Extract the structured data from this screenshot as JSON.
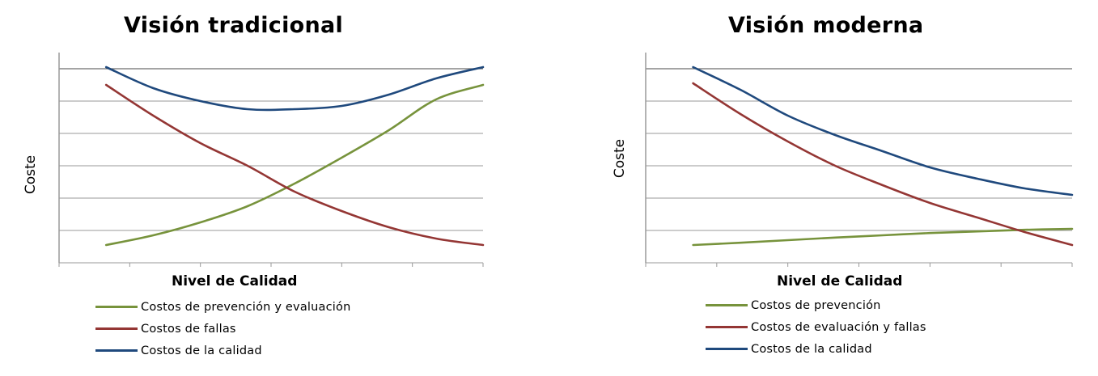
{
  "chart_data": [
    {
      "type": "line",
      "title": "Visión tradicional",
      "xlabel": "Nivel de Calidad",
      "ylabel": "Coste",
      "grid": true,
      "xlim": [
        0,
        9
      ],
      "ylim": [
        0,
        6
      ],
      "x": [
        1,
        2,
        3,
        4,
        5,
        6,
        7,
        8,
        9
      ],
      "series": [
        {
          "name": "Costos de prevención y evaluación",
          "color": "#77933c",
          "values": [
            0.55,
            0.85,
            1.25,
            1.75,
            2.45,
            3.25,
            4.1,
            5.05,
            5.5
          ]
        },
        {
          "name": "Costos de fallas",
          "color": "#943634",
          "values": [
            5.5,
            4.55,
            3.7,
            3.0,
            2.2,
            1.6,
            1.1,
            0.75,
            0.55
          ]
        },
        {
          "name": "Costos de la calidad",
          "color": "#1f497d",
          "values": [
            6.05,
            5.4,
            5.0,
            4.75,
            4.75,
            4.85,
            5.2,
            5.7,
            6.05
          ]
        }
      ],
      "legend_position": "bottom"
    },
    {
      "type": "line",
      "title": "Visión moderna",
      "xlabel": "Nivel de Calidad",
      "ylabel": "Coste",
      "grid": true,
      "xlim": [
        0,
        9
      ],
      "ylim": [
        0,
        6
      ],
      "x": [
        1,
        2,
        3,
        4,
        5,
        6,
        7,
        8,
        9
      ],
      "series": [
        {
          "name": "Costos de prevención",
          "color": "#77933c",
          "values": [
            0.55,
            0.62,
            0.7,
            0.78,
            0.85,
            0.92,
            0.97,
            1.02,
            1.05
          ]
        },
        {
          "name": "Costos de evaluación y fallas",
          "color": "#943634",
          "values": [
            5.55,
            4.6,
            3.75,
            3.0,
            2.4,
            1.85,
            1.4,
            0.95,
            0.55
          ]
        },
        {
          "name": "Costos de la calidad",
          "color": "#1f497d",
          "values": [
            6.05,
            5.35,
            4.55,
            3.95,
            3.45,
            2.95,
            2.6,
            2.3,
            2.1
          ]
        }
      ],
      "legend_position": "bottom"
    }
  ]
}
